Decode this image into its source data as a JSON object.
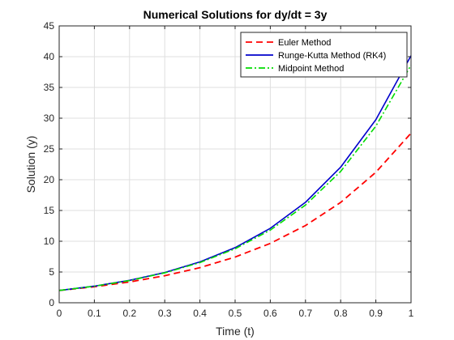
{
  "chart_data": {
    "type": "line",
    "title": "Numerical Solutions for dy/dt = 3y",
    "xlabel": "Time (t)",
    "ylabel": "Solution (y)",
    "xlim": [
      0,
      1
    ],
    "ylim": [
      0,
      45
    ],
    "xticks": [
      0,
      0.1,
      0.2,
      0.3,
      0.4,
      0.5,
      0.6,
      0.7,
      0.8,
      0.9,
      1
    ],
    "yticks": [
      0,
      5,
      10,
      15,
      20,
      25,
      30,
      35,
      40,
      45
    ],
    "grid": true,
    "legend_position": "top-right",
    "x": [
      0,
      0.1,
      0.2,
      0.3,
      0.4,
      0.5,
      0.6,
      0.7,
      0.8,
      0.9,
      1.0
    ],
    "series": [
      {
        "name": "Euler Method",
        "color": "#ff0000",
        "style": "dashed",
        "values": [
          2,
          2.6,
          3.38,
          4.39,
          5.71,
          7.43,
          9.65,
          12.55,
          16.31,
          21.21,
          27.57
        ]
      },
      {
        "name": "Runge-Kutta Method (RK4)",
        "color": "#0000cc",
        "style": "solid",
        "values": [
          2,
          2.7,
          3.64,
          4.92,
          6.64,
          8.96,
          12.1,
          16.33,
          22.04,
          29.75,
          40.16
        ]
      },
      {
        "name": "Midpoint Method",
        "color": "#00dd00",
        "style": "dashdot",
        "values": [
          2,
          2.69,
          3.61,
          4.86,
          6.53,
          8.78,
          11.81,
          15.88,
          21.35,
          28.71,
          38.62
        ]
      }
    ]
  }
}
